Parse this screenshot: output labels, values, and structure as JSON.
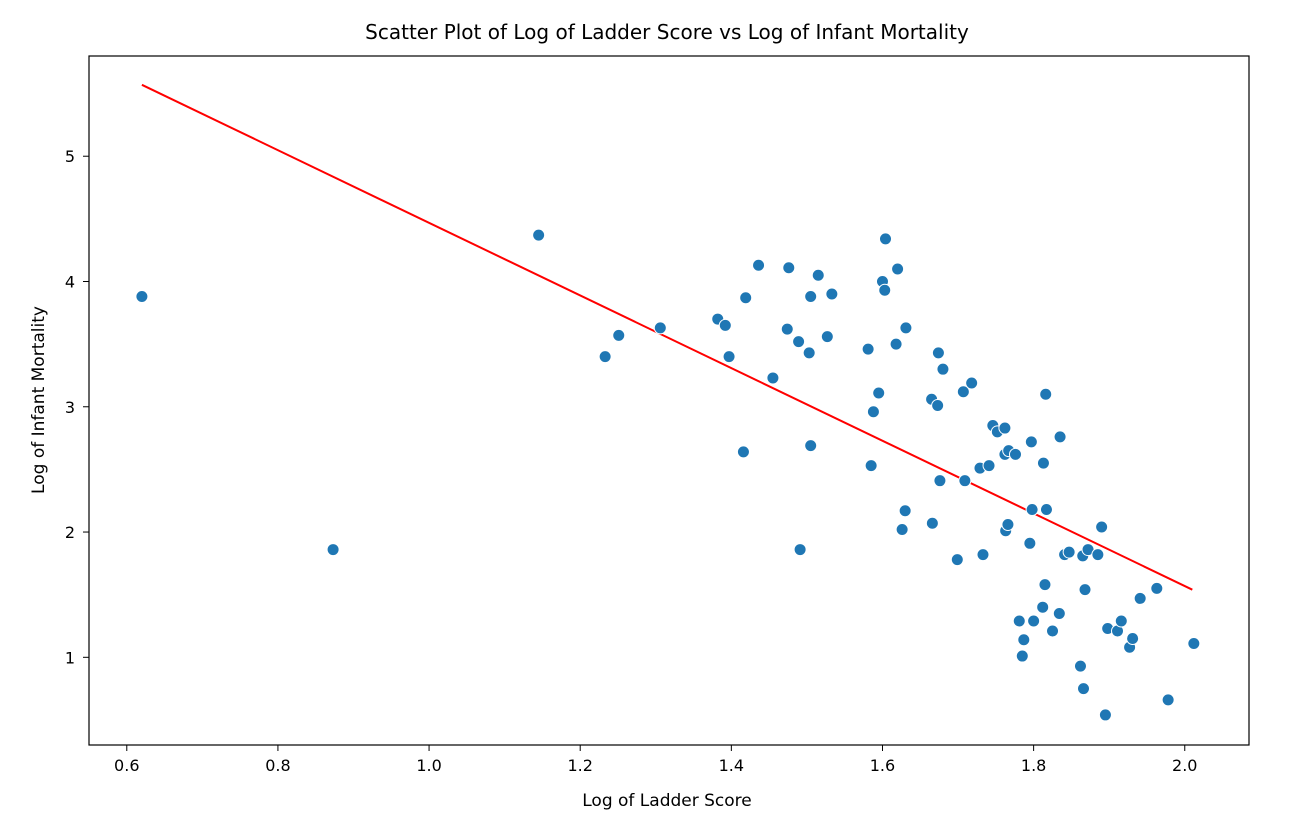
{
  "chart_data": {
    "type": "scatter",
    "title": "Scatter Plot of Log of Ladder Score vs Log of Infant Mortality",
    "xlabel": "Log of Ladder Score",
    "ylabel": "Log of Infant Mortality",
    "xlim": [
      0.55,
      2.085
    ],
    "ylim": [
      0.3,
      5.8
    ],
    "xticks": [
      "0.6",
      "0.8",
      "1.0",
      "1.2",
      "1.4",
      "1.6",
      "1.8",
      "2.0"
    ],
    "yticks": [
      "1",
      "2",
      "3",
      "4",
      "5"
    ],
    "grid": false,
    "legend": "none",
    "colors": {
      "points": "#1f77b4",
      "point_edge": "#ffffff",
      "fit_line": "#ff0000"
    },
    "fit_line": {
      "x": [
        0.62,
        2.01
      ],
      "y": [
        5.57,
        1.54
      ]
    },
    "points": [
      [
        0.62,
        3.88
      ],
      [
        0.873,
        1.86
      ],
      [
        1.145,
        4.37
      ],
      [
        1.233,
        3.4
      ],
      [
        1.251,
        3.57
      ],
      [
        1.306,
        3.63
      ],
      [
        1.382,
        3.7
      ],
      [
        1.392,
        3.65
      ],
      [
        1.397,
        3.4
      ],
      [
        1.416,
        2.64
      ],
      [
        1.419,
        3.87
      ],
      [
        1.436,
        4.13
      ],
      [
        1.455,
        3.23
      ],
      [
        1.474,
        3.62
      ],
      [
        1.476,
        4.11
      ],
      [
        1.489,
        3.52
      ],
      [
        1.491,
        1.86
      ],
      [
        1.503,
        3.43
      ],
      [
        1.505,
        3.88
      ],
      [
        1.505,
        2.69
      ],
      [
        1.515,
        4.05
      ],
      [
        1.527,
        3.56
      ],
      [
        1.533,
        3.9
      ],
      [
        1.581,
        3.46
      ],
      [
        1.585,
        2.53
      ],
      [
        1.588,
        2.96
      ],
      [
        1.595,
        3.11
      ],
      [
        1.6,
        4.0
      ],
      [
        1.603,
        3.93
      ],
      [
        1.604,
        4.34
      ],
      [
        1.618,
        3.5
      ],
      [
        1.62,
        4.1
      ],
      [
        1.626,
        2.02
      ],
      [
        1.63,
        2.17
      ],
      [
        1.631,
        3.63
      ],
      [
        1.665,
        3.06
      ],
      [
        1.666,
        2.07
      ],
      [
        1.673,
        3.01
      ],
      [
        1.674,
        3.43
      ],
      [
        1.676,
        2.41
      ],
      [
        1.68,
        3.3
      ],
      [
        1.699,
        1.78
      ],
      [
        1.707,
        3.12
      ],
      [
        1.709,
        2.41
      ],
      [
        1.718,
        3.19
      ],
      [
        1.729,
        2.51
      ],
      [
        1.733,
        1.82
      ],
      [
        1.741,
        2.53
      ],
      [
        1.746,
        2.85
      ],
      [
        1.752,
        2.8
      ],
      [
        1.762,
        2.83
      ],
      [
        1.762,
        2.62
      ],
      [
        1.763,
        2.01
      ],
      [
        1.766,
        2.06
      ],
      [
        1.767,
        2.65
      ],
      [
        1.776,
        2.62
      ],
      [
        1.781,
        1.29
      ],
      [
        1.785,
        1.01
      ],
      [
        1.787,
        1.14
      ],
      [
        1.795,
        1.91
      ],
      [
        1.797,
        2.72
      ],
      [
        1.798,
        2.18
      ],
      [
        1.8,
        1.29
      ],
      [
        1.812,
        1.4
      ],
      [
        1.813,
        2.55
      ],
      [
        1.815,
        1.58
      ],
      [
        1.816,
        3.1
      ],
      [
        1.817,
        2.18
      ],
      [
        1.825,
        1.21
      ],
      [
        1.834,
        1.35
      ],
      [
        1.835,
        2.76
      ],
      [
        1.841,
        1.82
      ],
      [
        1.847,
        1.84
      ],
      [
        1.862,
        0.93
      ],
      [
        1.865,
        1.81
      ],
      [
        1.866,
        0.75
      ],
      [
        1.868,
        1.54
      ],
      [
        1.872,
        1.86
      ],
      [
        1.885,
        1.82
      ],
      [
        1.89,
        2.04
      ],
      [
        1.895,
        0.54
      ],
      [
        1.898,
        1.23
      ],
      [
        1.911,
        1.21
      ],
      [
        1.916,
        1.29
      ],
      [
        1.927,
        1.08
      ],
      [
        1.931,
        1.15
      ],
      [
        1.941,
        1.47
      ],
      [
        1.963,
        1.55
      ],
      [
        1.978,
        0.66
      ],
      [
        2.012,
        1.11
      ]
    ]
  }
}
